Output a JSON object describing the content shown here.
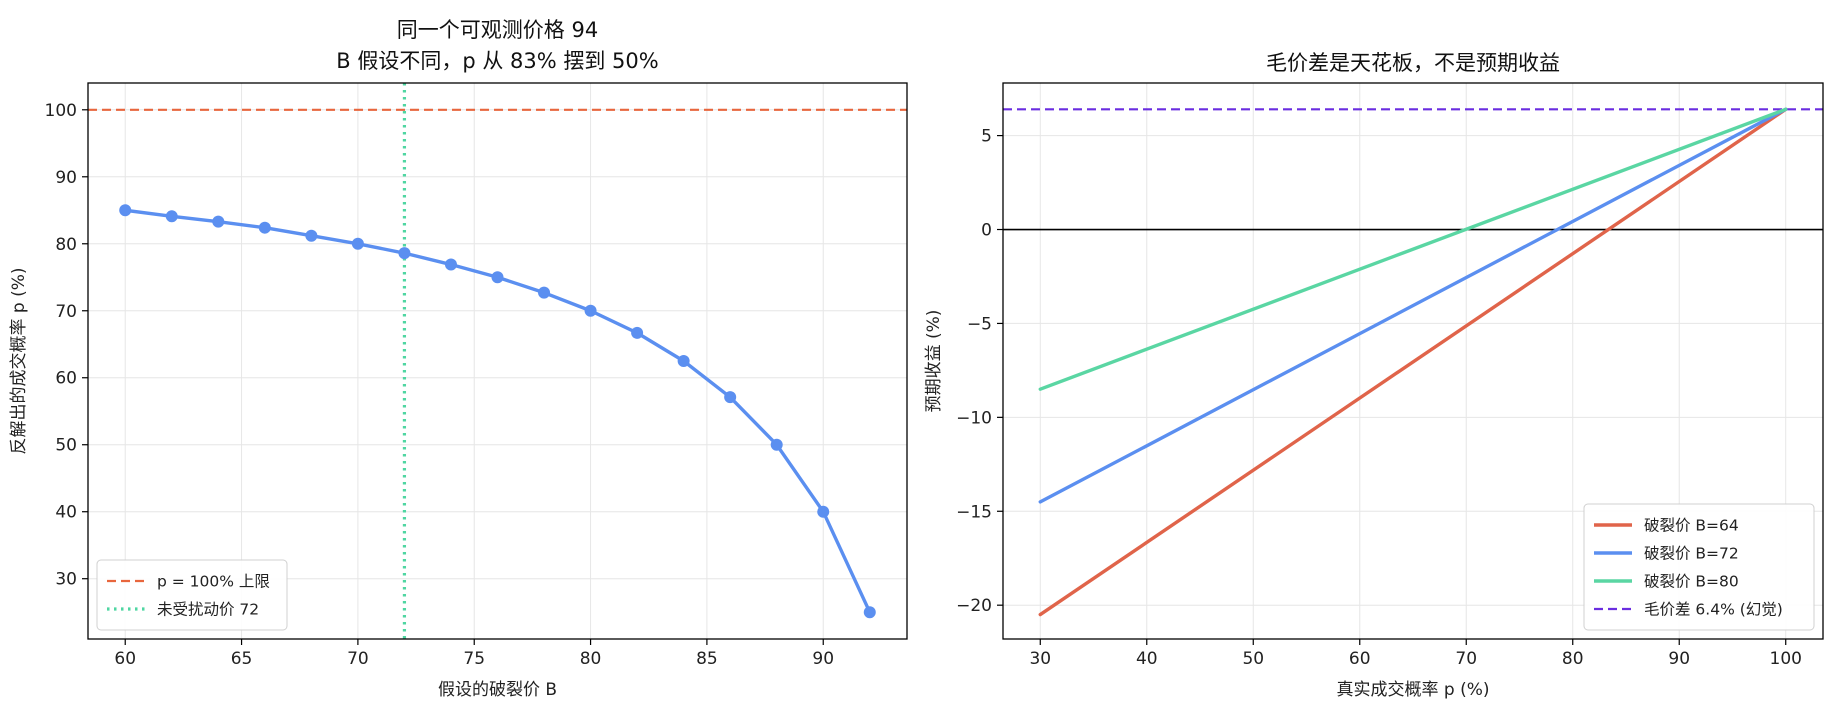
{
  "chart_data": [
    {
      "type": "line",
      "title": [
        "同一个可观测价格 94",
        "B 假设不同，p 从 83% 摆到 50%"
      ],
      "xlabel": "假设的破裂价 B",
      "ylabel": "反解出的成交概率 p (%)",
      "xlim": [
        58.4,
        93.6
      ],
      "ylim": [
        21,
        104
      ],
      "xticks": [
        60,
        65,
        70,
        75,
        80,
        85,
        90
      ],
      "yticks": [
        30,
        40,
        50,
        60,
        70,
        80,
        90,
        100
      ],
      "grid": true,
      "legend_position": "lower-left",
      "series": [
        {
          "style": "line-marker",
          "color": "#5b8ff0",
          "x": [
            60,
            62,
            64,
            66,
            68,
            70,
            72,
            74,
            76,
            78,
            80,
            82,
            84,
            86,
            88,
            90,
            92
          ],
          "y": [
            85.0,
            84.1,
            83.3,
            82.4,
            81.2,
            80.0,
            78.6,
            76.9,
            75.0,
            72.7,
            70.0,
            66.7,
            62.5,
            57.1,
            50.0,
            40.0,
            25.0
          ]
        }
      ],
      "hlines": [
        {
          "y": 100,
          "name": "p = 100% 上限",
          "color": "#e8663d",
          "style": "dashed"
        }
      ],
      "vlines": [
        {
          "x": 72,
          "name": "未受扰动价 72",
          "color": "#4fd6a2",
          "style": "dotted"
        }
      ]
    },
    {
      "type": "line",
      "title": [
        "毛价差是天花板，不是预期收益"
      ],
      "xlabel": "真实成交概率 p (%)",
      "ylabel": "预期收益 (%)",
      "xlim": [
        26.5,
        103.5
      ],
      "ylim": [
        -21.8,
        7.8
      ],
      "xticks": [
        30,
        40,
        50,
        60,
        70,
        80,
        90,
        100
      ],
      "yticks": [
        -20,
        -15,
        -10,
        -5,
        0,
        5
      ],
      "ytick_labels": [
        "−20",
        "−15",
        "−10",
        "−5",
        "0",
        "5"
      ],
      "grid": true,
      "legend_position": "lower-right",
      "series": [
        {
          "name": "破裂价 B=64",
          "color": "#e0644a",
          "x": [
            30,
            100
          ],
          "y": [
            -20.5,
            6.4
          ]
        },
        {
          "name": "破裂价 B=72",
          "color": "#5b8ff0",
          "x": [
            30,
            100
          ],
          "y": [
            -14.5,
            6.4
          ]
        },
        {
          "name": "破裂价 B=80",
          "color": "#5ad6a3",
          "x": [
            30,
            100
          ],
          "y": [
            -8.5,
            6.4
          ]
        }
      ],
      "hlines": [
        {
          "y": 6.4,
          "name": "毛价差 6.4% (幻觉)",
          "color": "#6a2de0",
          "style": "dashed"
        },
        {
          "y": 0,
          "color": "#000000",
          "style": "solid"
        }
      ]
    }
  ]
}
